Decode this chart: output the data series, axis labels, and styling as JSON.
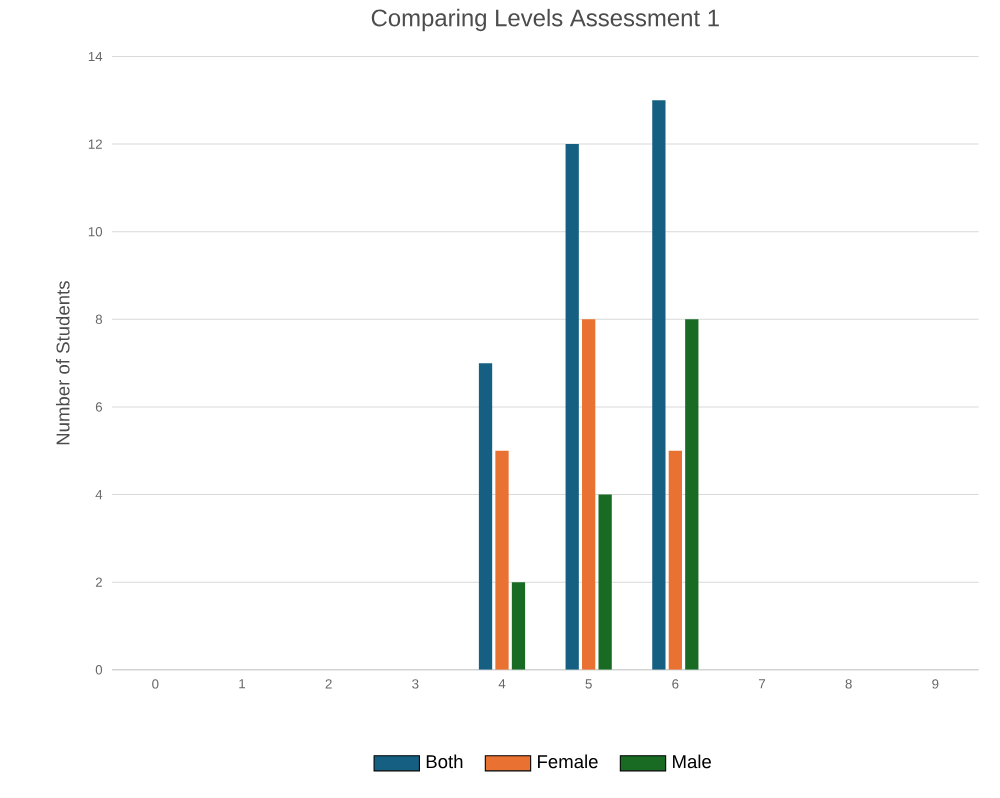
{
  "chart_data": {
    "type": "bar",
    "title": "Comparing Levels Assessment 1",
    "ylabel": "Number of Students",
    "categories": [
      "0",
      "1",
      "2",
      "3",
      "4",
      "5",
      "6",
      "7",
      "8",
      "9"
    ],
    "series": [
      {
        "name": "Both",
        "color": "#156082",
        "values": [
          0,
          0,
          0,
          0,
          7,
          12,
          13,
          0,
          0,
          0
        ]
      },
      {
        "name": "Female",
        "color": "#e97132",
        "values": [
          0,
          0,
          0,
          0,
          5,
          8,
          5,
          0,
          0,
          0
        ]
      },
      {
        "name": "Male",
        "color": "#196b24",
        "values": [
          0,
          0,
          0,
          0,
          2,
          4,
          8,
          0,
          0,
          0
        ]
      }
    ],
    "ylim": [
      0,
      14
    ],
    "yticks": [
      0,
      2,
      4,
      6,
      8,
      10,
      12,
      14
    ],
    "grid": "y",
    "legend": "bottom"
  }
}
